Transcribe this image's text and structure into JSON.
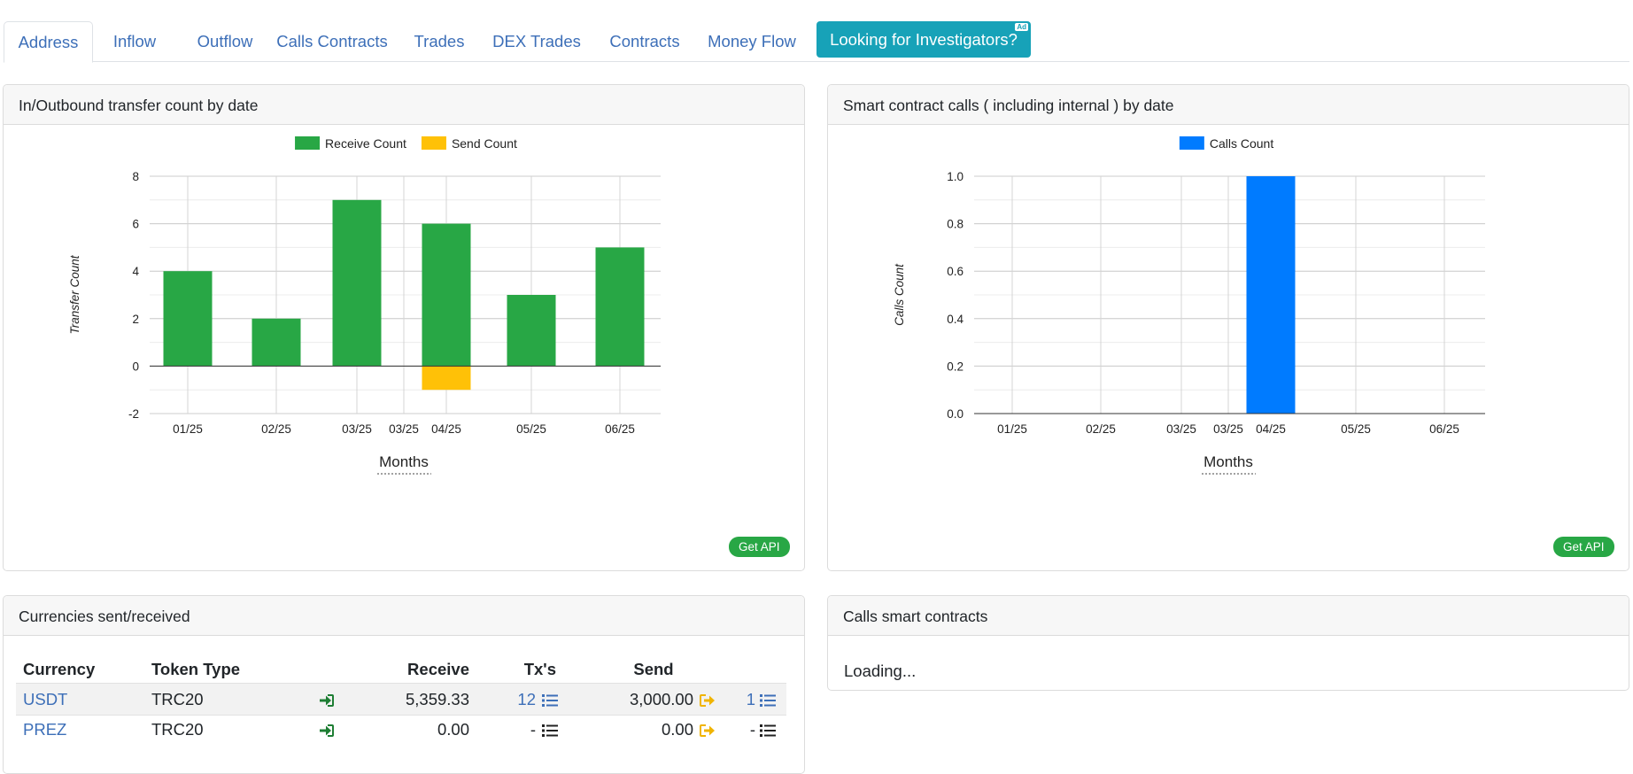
{
  "tabs": [
    {
      "label": "Address",
      "active": true
    },
    {
      "label": "Inflow"
    },
    {
      "label": "Outflow"
    },
    {
      "label": "Calls Contracts"
    },
    {
      "label": "Trades"
    },
    {
      "label": "DEX Trades"
    },
    {
      "label": "Contracts"
    },
    {
      "label": "Money Flow"
    }
  ],
  "promo": {
    "label": "Looking for Investigators?",
    "badge": "Ad"
  },
  "transfer_card": {
    "title": "In/Outbound transfer count by date",
    "api_label": "Get API"
  },
  "calls_card": {
    "title": "Smart contract calls ( including internal ) by date",
    "api_label": "Get API"
  },
  "currencies_card": {
    "title": "Currencies sent/received",
    "headers": {
      "currency": "Currency",
      "token_type": "Token Type",
      "receive": "Receive",
      "txs": "Tx's",
      "send": "Send"
    },
    "rows": [
      {
        "currency": "USDT",
        "token_type": "TRC20",
        "receive": "5,359.33",
        "receive_txs": "12",
        "send": "3,000.00",
        "send_txs": "1"
      },
      {
        "currency": "PREZ",
        "token_type": "TRC20",
        "receive": "0.00",
        "receive_txs": "-",
        "send": "0.00",
        "send_txs": "-"
      }
    ]
  },
  "calls_contracts_card": {
    "title": "Calls smart contracts",
    "loading": "Loading..."
  },
  "colors": {
    "receive": "#28a745",
    "send": "#ffc107",
    "calls": "#007bff",
    "link": "#3d6fb8",
    "promo": "#17a2b8"
  },
  "chart_data": [
    {
      "type": "bar",
      "stacked": true,
      "categories": [
        "01/25",
        "02/25",
        "03/25",
        "03/25",
        "04/25",
        "05/25",
        "06/25"
      ],
      "series": [
        {
          "name": "Receive Count",
          "color": "#28a745",
          "values": [
            4,
            2,
            7,
            null,
            6,
            3,
            5
          ]
        },
        {
          "name": "Send Count",
          "color": "#ffc107",
          "values": [
            0,
            0,
            0,
            null,
            -1,
            0,
            0
          ]
        }
      ],
      "xlabel": "Months",
      "ylabel": "Transfer Count",
      "ylim": [
        -2,
        8
      ],
      "yticks": [
        "8",
        "6",
        "4",
        "2",
        "0",
        "-2"
      ],
      "ytick_values": [
        8,
        6,
        4,
        2,
        0,
        -2
      ],
      "legend": "top",
      "grid": true
    },
    {
      "type": "bar",
      "categories": [
        "01/25",
        "02/25",
        "03/25",
        "03/25",
        "04/25",
        "05/25",
        "06/25"
      ],
      "series": [
        {
          "name": "Calls Count",
          "color": "#007bff",
          "values": [
            0,
            0,
            0,
            null,
            1,
            0,
            0
          ]
        }
      ],
      "xlabel": "Months",
      "ylabel": "Calls Count",
      "ylim": [
        0,
        1
      ],
      "yticks": [
        "1.0",
        "0.8",
        "0.6",
        "0.4",
        "0.2",
        "0.0"
      ],
      "ytick_values": [
        1.0,
        0.8,
        0.6,
        0.4,
        0.2,
        0.0
      ],
      "legend": "top",
      "grid": true
    }
  ]
}
